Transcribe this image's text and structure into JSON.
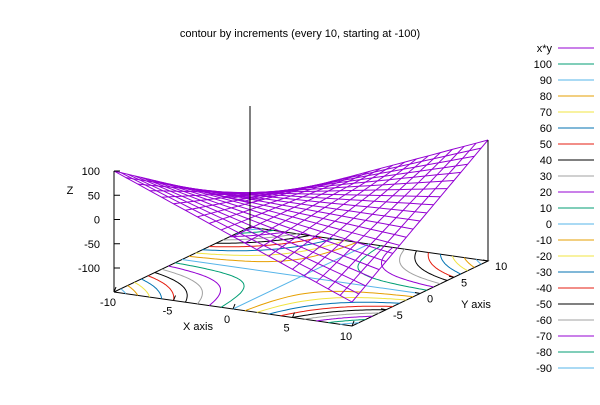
{
  "chart_data": {
    "type": "surface",
    "title": "contour by increments (every 10, starting at -100)",
    "function": "x*y",
    "xlabel": "X axis",
    "ylabel": "Y axis",
    "zlabel": "Z",
    "xlim": [
      -10,
      10
    ],
    "ylim": [
      -10,
      10
    ],
    "zlim": [
      -100,
      100
    ],
    "x_ticks": [
      "-10",
      "-5",
      "0",
      "5",
      "10"
    ],
    "y_ticks": [
      "-5",
      "0",
      "5",
      "10"
    ],
    "z_ticks": [
      "100",
      "50",
      "0",
      "-50",
      "-100"
    ],
    "grid_samples": 20,
    "surface_color": "#9400d3",
    "contour_start": -100,
    "contour_increment": 10,
    "series": [
      {
        "name": "x*y",
        "color": "#9400d3"
      },
      {
        "name": "100",
        "color": "#009e73"
      },
      {
        "name": "90",
        "color": "#56b4e9"
      },
      {
        "name": "80",
        "color": "#e69f00"
      },
      {
        "name": "70",
        "color": "#f0e442"
      },
      {
        "name": "60",
        "color": "#0072b2"
      },
      {
        "name": "50",
        "color": "#e51e10"
      },
      {
        "name": "40",
        "color": "#000000"
      },
      {
        "name": "30",
        "color": "#a0a0a0"
      },
      {
        "name": "20",
        "color": "#9400d3"
      },
      {
        "name": "10",
        "color": "#009e73"
      },
      {
        "name": "0",
        "color": "#56b4e9"
      },
      {
        "name": "-10",
        "color": "#e69f00"
      },
      {
        "name": "-20",
        "color": "#f0e442"
      },
      {
        "name": "-30",
        "color": "#0072b2"
      },
      {
        "name": "-40",
        "color": "#e51e10"
      },
      {
        "name": "-50",
        "color": "#000000"
      },
      {
        "name": "-60",
        "color": "#a0a0a0"
      },
      {
        "name": "-70",
        "color": "#9400d3"
      },
      {
        "name": "-80",
        "color": "#009e73"
      },
      {
        "name": "-90",
        "color": "#56b4e9"
      }
    ]
  }
}
